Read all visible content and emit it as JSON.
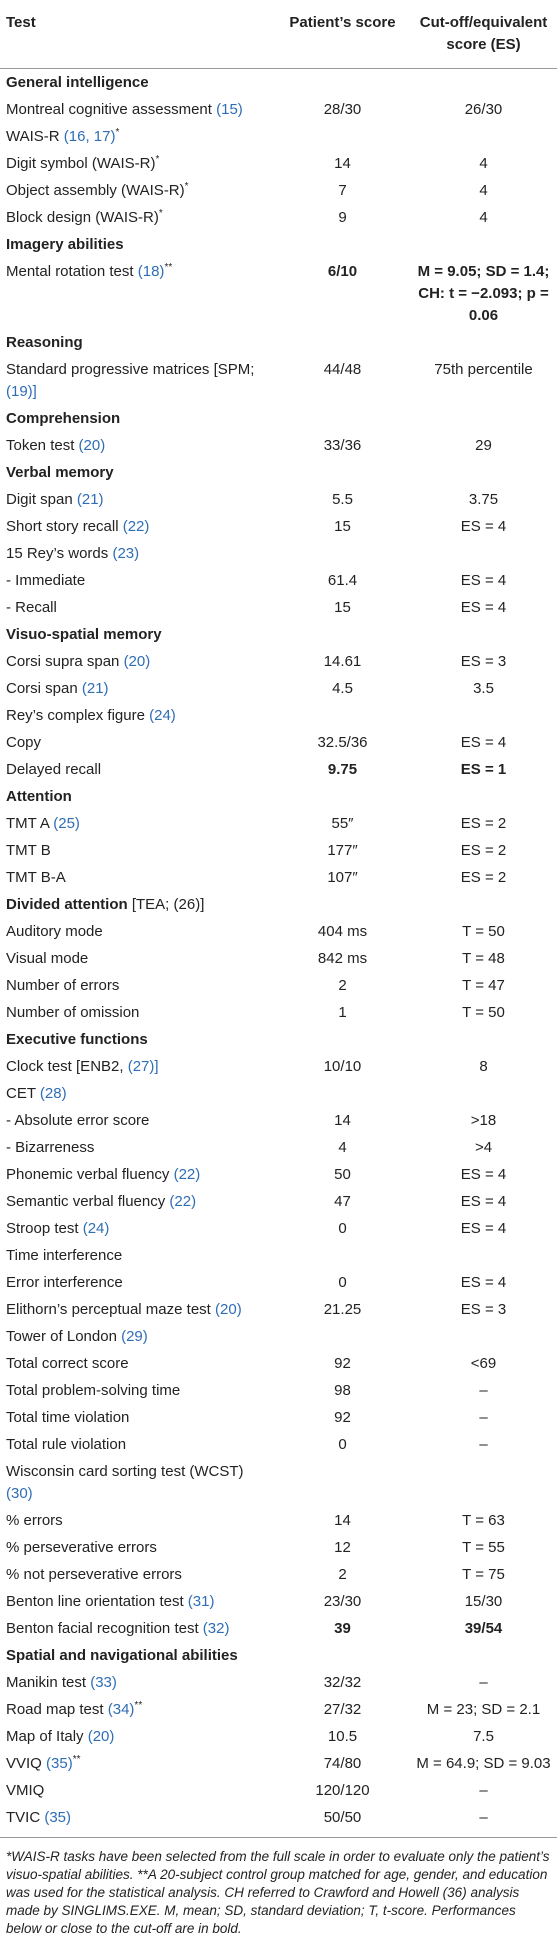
{
  "header": {
    "test": "Test",
    "score": "Patient’s score",
    "cutoff": "Cut-off/equivalent score (ES)"
  },
  "sections": [
    {
      "title": "General intelligence",
      "rows": [
        {
          "test": "Montreal cognitive assessment",
          "ref": "(15)",
          "score": "28/30",
          "cutoff": "26/30"
        },
        {
          "test": "WAIS-R",
          "ref": "(16, 17)",
          "mark": "*"
        },
        {
          "test": "Digit symbol (WAIS-R)",
          "mark": "*",
          "score": "14",
          "cutoff": "4"
        },
        {
          "test": "Object assembly (WAIS-R)",
          "mark": "*",
          "score": "7",
          "cutoff": "4"
        },
        {
          "test": "Block design (WAIS-R)",
          "mark": "*",
          "score": "9",
          "cutoff": "4"
        }
      ]
    },
    {
      "title": "Imagery abilities",
      "rows": [
        {
          "test": "Mental rotation test",
          "ref": "(18)",
          "mark": "**",
          "score": "6/10",
          "cutoff": "M = 9.05; SD = 1.4; CH: t = −2.093; p = 0.06",
          "bold": true
        }
      ]
    },
    {
      "title": "Reasoning",
      "rows": [
        {
          "test": "Standard progressive matrices [SPM;",
          "ref": "(19)]",
          "score": "44/48",
          "cutoff": "75th percentile"
        }
      ]
    },
    {
      "title": "Comprehension",
      "rows": [
        {
          "test": "Token test",
          "ref": "(20)",
          "score": "33/36",
          "cutoff": "29"
        }
      ]
    },
    {
      "title": "Verbal memory",
      "rows": [
        {
          "test": "Digit span",
          "ref": "(21)",
          "score": "5.5",
          "cutoff": "3.75"
        },
        {
          "test": "Short story recall",
          "ref": "(22)",
          "score": "15",
          "cutoff": "ES = 4"
        },
        {
          "test": "15 Rey’s words",
          "ref": "(23)"
        },
        {
          "test": "- Immediate",
          "score": "61.4",
          "cutoff": "ES = 4"
        },
        {
          "test": "- Recall",
          "score": "15",
          "cutoff": "ES = 4"
        }
      ]
    },
    {
      "title": "Visuo-spatial memory",
      "rows": [
        {
          "test": "Corsi supra span",
          "ref": "(20)",
          "score": "14.61",
          "cutoff": "ES = 3"
        },
        {
          "test": "Corsi span",
          "ref": "(21)",
          "score": "4.5",
          "cutoff": "3.5"
        },
        {
          "test": "Rey’s complex figure",
          "ref": "(24)"
        },
        {
          "test": "Copy",
          "score": "32.5/36",
          "cutoff": "ES = 4"
        },
        {
          "test": "Delayed recall",
          "score": "9.75",
          "cutoff": "ES = 1",
          "bold": true
        }
      ]
    },
    {
      "title": "Attention",
      "rows": [
        {
          "test": "TMT A",
          "ref": "(25)",
          "score": "55″",
          "cutoff": "ES = 2"
        },
        {
          "test": "TMT B",
          "score": "177″",
          "cutoff": "ES = 2"
        },
        {
          "test": "TMT B-A",
          "score": "107″",
          "cutoff": "ES = 2"
        }
      ]
    },
    {
      "title": "Divided attention",
      "note": "[TEA; (26)]",
      "rows": [
        {
          "test": "Auditory mode",
          "score": "404 ms",
          "cutoff": "T = 50"
        },
        {
          "test": "Visual mode",
          "score": "842 ms",
          "cutoff": "T = 48"
        },
        {
          "test": "Number of errors",
          "score": "2",
          "cutoff": "T = 47"
        },
        {
          "test": "Number of omission",
          "score": "1",
          "cutoff": "T = 50"
        }
      ]
    },
    {
      "title": "Executive functions",
      "rows": [
        {
          "test": "Clock test [ENB2,",
          "ref": "(27)]",
          "score": "10/10",
          "cutoff": "8"
        },
        {
          "test": "CET",
          "ref": "(28)"
        },
        {
          "test": "- Absolute error score",
          "score": "14",
          "cutoff": ">18"
        },
        {
          "test": "- Bizarreness",
          "score": "4",
          "cutoff": ">4"
        },
        {
          "test": "Phonemic verbal fluency",
          "ref": "(22)",
          "score": "50",
          "cutoff": "ES = 4"
        },
        {
          "test": "Semantic verbal fluency",
          "ref": "(22)",
          "score": "47",
          "cutoff": "ES = 4"
        },
        {
          "test": "Stroop test",
          "ref": "(24)",
          "score": "0",
          "cutoff": "ES = 4"
        },
        {
          "test": "Time interference"
        },
        {
          "test": "Error interference",
          "score": "0",
          "cutoff": "ES = 4"
        },
        {
          "test": "Elithorn’s perceptual maze test",
          "ref": "(20)",
          "score": "21.25",
          "cutoff": "ES = 3"
        },
        {
          "test": "Tower of London",
          "ref": "(29)"
        },
        {
          "test": "Total correct score",
          "score": "92",
          "cutoff": "<69"
        },
        {
          "test": "Total problem-solving time",
          "score": "98",
          "cutoff": "–"
        },
        {
          "test": "Total time violation",
          "score": "92",
          "cutoff": "–"
        },
        {
          "test": "Total rule violation",
          "score": "0",
          "cutoff": "–"
        },
        {
          "test": "Wisconsin card sorting test (WCST)",
          "ref": "(30)"
        },
        {
          "test": "% errors",
          "score": "14",
          "cutoff": "T = 63"
        },
        {
          "test": "% perseverative errors",
          "score": "12",
          "cutoff": "T = 55"
        },
        {
          "test": "% not perseverative errors",
          "score": "2",
          "cutoff": "T = 75"
        },
        {
          "test": "Benton line orientation test",
          "ref": "(31)",
          "score": "23/30",
          "cutoff": "15/30"
        },
        {
          "test": "Benton facial recognition test",
          "ref": "(32)",
          "score": "39",
          "cutoff": "39/54",
          "bold": true
        }
      ]
    },
    {
      "title": "Spatial and navigational abilities",
      "rows": [
        {
          "test": "Manikin test",
          "ref": "(33)",
          "score": "32/32",
          "cutoff": "–"
        },
        {
          "test": "Road map test",
          "ref": "(34)",
          "mark": "**",
          "score": "27/32",
          "cutoff": "M = 23; SD = 2.1"
        },
        {
          "test": "Map of Italy",
          "ref": "(20)",
          "score": "10.5",
          "cutoff": "7.5"
        },
        {
          "test": "VVIQ",
          "ref": "(35)",
          "mark": "**",
          "score": "74/80",
          "cutoff": "M = 64.9; SD = 9.03"
        },
        {
          "test": "VMIQ",
          "score": "120/120",
          "cutoff": "–"
        },
        {
          "test": "TVIC",
          "ref": "(35)",
          "score": "50/50",
          "cutoff": "–"
        }
      ]
    }
  ],
  "footnote": "*WAIS-R tasks have been selected from the full scale in order to evaluate only the patient’s visuo-spatial abilities. **A 20-subject control group matched for age, gender, and education was used for the statistical analysis. CH referred to Crawford and Howell (36) analysis made by SINGLIMS.EXE. M, mean; SD, standard deviation; T, t-score. Performances below or close to the cut-off are in bold."
}
